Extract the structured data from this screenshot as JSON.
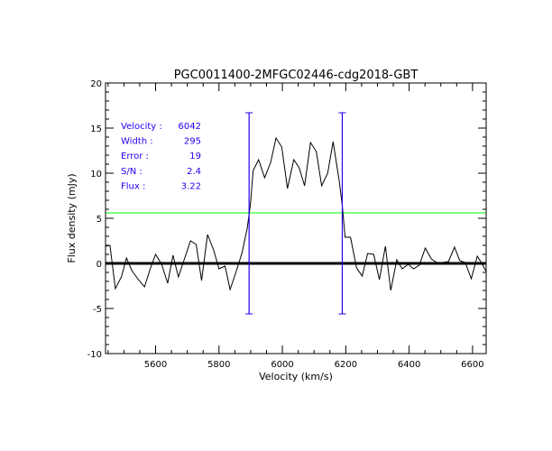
{
  "chart_data": {
    "type": "line",
    "title": "PGC0011400-2MFGC02446-cdg2018-GBT",
    "xlabel": "Velocity (km/s)",
    "ylabel": "Flux density (mJy)",
    "xlim": [
      5442,
      6643
    ],
    "ylim": [
      -10,
      20
    ],
    "xticks": [
      5600,
      5800,
      6000,
      6200,
      6400,
      6600
    ],
    "yticks": [
      -10,
      -5,
      0,
      5,
      10,
      15,
      20
    ],
    "grid": false,
    "colors": {
      "spectrum": "#000000",
      "markers": "#2200ee",
      "threshold": "#00ff00",
      "zero": "#000000",
      "annotation": "#2200ee"
    },
    "threshold_level": 5.6,
    "markers": [
      {
        "x": 5895,
        "y_range": [
          -5.6,
          16.7
        ]
      },
      {
        "x": 6189,
        "y_range": [
          -5.6,
          16.7
        ]
      }
    ],
    "annotations": [
      {
        "label": "Velocity :",
        "value": "6042"
      },
      {
        "label": "Width :",
        "value": "295"
      },
      {
        "label": "Error :",
        "value": "19"
      },
      {
        "label": "S/N :",
        "value": "2.4"
      },
      {
        "label": "Flux :",
        "value": "3.22"
      }
    ],
    "series": [
      {
        "name": "spectrum",
        "x": [
          5442,
          5456,
          5473,
          5492,
          5508,
          5525,
          5546,
          5565,
          5584,
          5600,
          5619,
          5638,
          5655,
          5672,
          5691,
          5710,
          5728,
          5745,
          5764,
          5783,
          5800,
          5819,
          5835,
          5856,
          5873,
          5889,
          5899,
          5908,
          5925,
          5944,
          5963,
          5980,
          5998,
          6016,
          6036,
          6053,
          6070,
          6089,
          6107,
          6124,
          6143,
          6160,
          6179,
          6189,
          6198,
          6215,
          6234,
          6252,
          6269,
          6288,
          6306,
          6325,
          6342,
          6361,
          6378,
          6397,
          6414,
          6432,
          6451,
          6470,
          6487,
          6505,
          6524,
          6543,
          6560,
          6577,
          6596,
          6615,
          6631,
          6643
        ],
        "y": [
          1.9,
          2.0,
          -2.8,
          -1.5,
          0.6,
          -0.8,
          -1.8,
          -2.6,
          -0.5,
          1.0,
          -0.1,
          -2.2,
          0.9,
          -1.5,
          0.5,
          2.5,
          2.1,
          -1.9,
          3.2,
          1.5,
          -0.6,
          -0.3,
          -2.9,
          -0.7,
          1.2,
          3.9,
          6.5,
          10.3,
          11.5,
          9.5,
          11.2,
          13.9,
          12.9,
          8.3,
          11.5,
          10.6,
          8.6,
          13.4,
          12.4,
          8.6,
          10.0,
          13.5,
          9.2,
          6.4,
          2.9,
          2.9,
          -0.5,
          -1.4,
          1.1,
          1.0,
          -1.8,
          1.9,
          -3.0,
          0.4,
          -0.6,
          -0.1,
          -0.6,
          -0.2,
          1.7,
          0.5,
          0.1,
          0.1,
          0.2,
          1.8,
          0.3,
          0.1,
          -1.7,
          0.8,
          -0.1,
          -0.9
        ]
      }
    ]
  }
}
